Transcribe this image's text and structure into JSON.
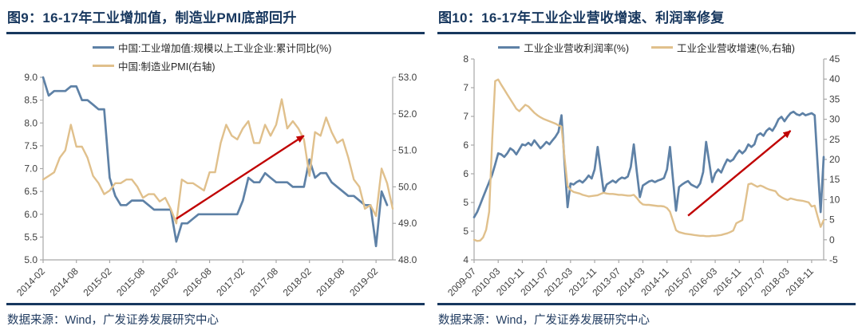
{
  "source_note": "数据来源：Wind，广发证券发展研究中心",
  "colors": {
    "navy": "#17375E",
    "blue": "#5E81A6",
    "tan": "#E0C08C",
    "red": "#C00000",
    "axis_line": "#A8A8A8",
    "tick_text": "#404040"
  },
  "chart_data": [
    {
      "type": "line",
      "title": "图9：16-17年工业增加值，制造业PMI底部回升",
      "legend_layout": "stacked",
      "n_points": 64,
      "x_tick_indices": [
        0,
        6,
        12,
        18,
        24,
        30,
        36,
        42,
        48,
        54,
        60
      ],
      "x_tick_labels": [
        "2014-02",
        "2014-08",
        "2015-02",
        "2015-08",
        "2016-02",
        "2016-08",
        "2017-02",
        "2017-08",
        "2018-02",
        "2018-08",
        "2019-02"
      ],
      "y_left": {
        "min": 5.0,
        "max": 9.0,
        "tick_labels": [
          "9.0",
          "8.5",
          "8.0",
          "7.5",
          "7.0",
          "6.5",
          "6.0",
          "5.5",
          "5.0"
        ]
      },
      "y_right": {
        "min": 48.0,
        "max": 53.0,
        "tick_labels": [
          "53.0",
          "52.0",
          "51.0",
          "50.0",
          "49.0",
          "48.0"
        ]
      },
      "series": [
        {
          "name": "中国:工业增加值:规模以上工业企业:累计同比(%)",
          "axis": "left",
          "color": "blue",
          "line_width": 2.7,
          "values": [
            9.0,
            8.6,
            8.7,
            8.7,
            8.7,
            8.8,
            8.8,
            8.5,
            8.5,
            8.4,
            8.3,
            8.3,
            6.8,
            6.4,
            6.2,
            6.2,
            6.3,
            6.3,
            6.3,
            6.2,
            6.1,
            6.1,
            6.1,
            6.1,
            5.4,
            5.8,
            5.8,
            5.9,
            6.0,
            6.0,
            6.0,
            6.0,
            6.0,
            6.0,
            6.0,
            6.0,
            6.3,
            6.8,
            6.7,
            6.7,
            6.9,
            6.8,
            6.7,
            6.7,
            6.7,
            6.6,
            6.6,
            6.6,
            7.2,
            6.8,
            6.9,
            6.9,
            6.7,
            6.6,
            6.5,
            6.4,
            6.4,
            6.3,
            6.2,
            6.2,
            5.3,
            6.5,
            6.2,
            null
          ]
        },
        {
          "name": "中国:制造业PMI(右轴)",
          "axis": "right",
          "color": "tan",
          "line_width": 2.4,
          "values": [
            50.2,
            50.3,
            50.4,
            50.8,
            51.0,
            51.7,
            51.1,
            51.1,
            50.8,
            50.3,
            50.1,
            49.8,
            49.9,
            50.1,
            50.1,
            50.2,
            50.2,
            50.0,
            49.7,
            49.8,
            49.8,
            49.6,
            49.7,
            49.4,
            49.0,
            50.2,
            50.1,
            50.1,
            50.0,
            49.9,
            50.4,
            50.4,
            51.2,
            51.7,
            51.4,
            51.3,
            51.6,
            51.8,
            51.2,
            51.2,
            51.7,
            51.4,
            51.7,
            52.4,
            51.6,
            51.8,
            51.6,
            51.3,
            50.3,
            51.5,
            51.4,
            51.9,
            51.5,
            51.2,
            51.3,
            50.8,
            50.2,
            50.0,
            49.4,
            49.5,
            49.2,
            50.5,
            50.1,
            49.4
          ]
        }
      ],
      "annotation_arrow": {
        "color": "red",
        "from": {
          "index": 24,
          "axis": "left",
          "value": 5.9
        },
        "to": {
          "index": 47,
          "axis": "left",
          "value": 7.72
        }
      }
    },
    {
      "type": "line",
      "title": "图10：16-17年工业企业营收增速、利润率修复",
      "legend_layout": "row",
      "n_points": 117,
      "x_tick_indices": [
        0,
        8,
        16,
        24,
        32,
        40,
        48,
        56,
        64,
        72,
        80,
        88,
        96,
        104,
        112
      ],
      "x_tick_labels": [
        "2009-07",
        "2010-03",
        "2010-11",
        "2011-07",
        "2012-03",
        "2012-11",
        "2013-07",
        "2014-03",
        "2014-11",
        "2015-07",
        "2016-03",
        "2016-11",
        "2017-07",
        "2018-03",
        "2018-11"
      ],
      "y_left": {
        "min": 4.0,
        "max": 8.0,
        "tick_labels": [
          "8",
          "7",
          "7",
          "6",
          "6",
          "5",
          "5",
          "4"
        ]
      },
      "y_right": {
        "min": -5,
        "max": 45,
        "tick_labels": [
          "45",
          "40",
          "35",
          "30",
          "25",
          "20",
          "15",
          "10",
          "5",
          "0",
          "-5"
        ]
      },
      "series": [
        {
          "name": "工业企业营收利润率(%)",
          "axis": "left",
          "color": "blue",
          "line_width": 2.7,
          "values": [
            4.85,
            4.95,
            5.1,
            5.25,
            5.4,
            5.55,
            5.7,
            5.9,
            6.12,
            6.1,
            6.05,
            6.12,
            6.22,
            6.18,
            6.1,
            6.2,
            6.3,
            6.28,
            6.33,
            6.28,
            6.38,
            6.3,
            6.22,
            6.28,
            6.35,
            6.3,
            6.38,
            6.45,
            6.55,
            6.88,
            5.95,
            5.05,
            5.52,
            5.5,
            5.55,
            5.58,
            5.54,
            5.6,
            5.68,
            5.62,
            5.8,
            6.25,
            5.8,
            5.35,
            5.5,
            5.54,
            5.58,
            5.54,
            5.6,
            5.64,
            5.62,
            5.66,
            5.85,
            6.3,
            5.75,
            5.25,
            5.48,
            5.52,
            5.56,
            5.58,
            5.55,
            5.58,
            5.6,
            5.63,
            5.8,
            6.25,
            5.6,
            4.98,
            5.45,
            5.5,
            5.54,
            5.57,
            5.5,
            5.47,
            5.44,
            5.52,
            5.75,
            6.35,
            5.95,
            5.55,
            5.72,
            5.8,
            5.74,
            5.88,
            6.0,
            5.96,
            6.0,
            6.1,
            6.18,
            6.12,
            6.18,
            6.3,
            6.25,
            6.3,
            6.48,
            6.52,
            6.47,
            6.57,
            6.62,
            6.57,
            6.67,
            6.8,
            6.85,
            6.76,
            6.85,
            6.92,
            6.95,
            6.9,
            6.88,
            6.92,
            6.88,
            6.9,
            6.92,
            6.88,
            5.9,
            4.95,
            6.05
          ]
        },
        {
          "name": "工业企业营收增速(%,右轴)",
          "axis": "right",
          "color": "tan",
          "line_width": 2.4,
          "values": [
            0.0,
            -0.3,
            -0.2,
            0.6,
            2.5,
            7.0,
            25.0,
            39.5,
            39.9,
            38.6,
            37.4,
            36.2,
            35.0,
            33.8,
            32.6,
            32.0,
            32.8,
            33.6,
            33.2,
            32.4,
            31.6,
            31.0,
            30.5,
            30.1,
            29.8,
            29.5,
            29.2,
            28.9,
            28.5,
            28.2,
            20.5,
            13.4,
            12.4,
            11.9,
            11.7,
            11.5,
            11.2,
            11.0,
            10.8,
            10.9,
            11.0,
            11.1,
            11.4,
            11.7,
            11.5,
            11.4,
            11.4,
            11.3,
            11.2,
            11.2,
            11.1,
            11.0,
            11.0,
            11.2,
            10.4,
            9.4,
            8.8,
            8.7,
            8.7,
            8.6,
            8.5,
            8.4,
            8.4,
            8.3,
            7.9,
            7.0,
            4.7,
            2.4,
            1.9,
            1.7,
            1.5,
            1.4,
            1.3,
            1.2,
            1.1,
            1.0,
            1.0,
            0.9,
            0.9,
            1.0,
            1.0,
            1.1,
            1.2,
            1.4,
            1.6,
            1.9,
            2.3,
            4.1,
            4.5,
            4.9,
            9.2,
            13.8,
            14.0,
            13.6,
            13.2,
            13.5,
            13.2,
            12.8,
            12.5,
            12.3,
            12.1,
            11.1,
            10.6,
            10.2,
            9.9,
            10.3,
            10.1,
            9.9,
            9.8,
            9.7,
            9.5,
            9.3,
            8.3,
            8.5,
            5.8,
            3.2,
            4.9
          ]
        }
      ],
      "annotation_arrow": {
        "color": "red",
        "from": {
          "index": 71,
          "axis": "left",
          "value": 4.88
        },
        "to": {
          "index": 105,
          "axis": "left",
          "value": 6.57
        }
      }
    }
  ]
}
